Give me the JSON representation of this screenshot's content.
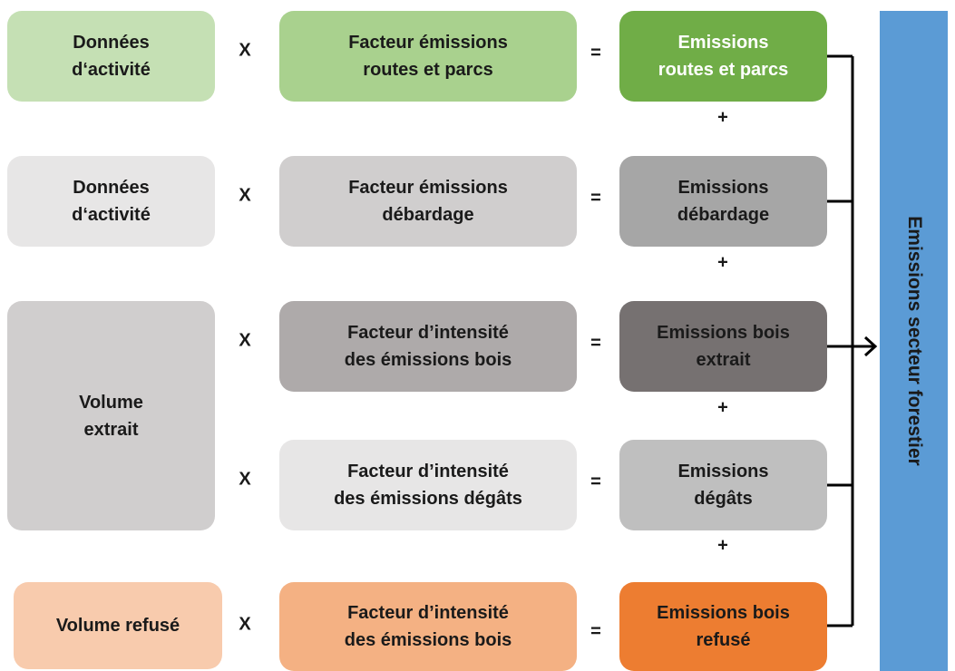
{
  "inputs": [
    [
      "Données",
      "d‘activité"
    ],
    [
      "Données",
      "d‘activité"
    ],
    [
      "Volume",
      "extrait"
    ],
    [
      "Volume refusé"
    ]
  ],
  "rows": [
    {
      "times": "X",
      "factor": [
        "Facteur émissions",
        "routes et parcs"
      ],
      "equals": "=",
      "result": [
        "Emissions",
        "routes et parcs"
      ]
    },
    {
      "times": "X",
      "factor": [
        "Facteur émissions",
        "débardage"
      ],
      "equals": "=",
      "result": [
        "Emissions",
        "débardage"
      ]
    },
    {
      "times": "X",
      "factor": [
        "Facteur  d’intensité",
        "des émissions bois"
      ],
      "equals": "=",
      "result": [
        "Emissions bois",
        "extrait"
      ]
    },
    {
      "times": "X",
      "factor": [
        "Facteur  d’intensité",
        "des émissions dégâts"
      ],
      "equals": "=",
      "result": [
        "Emissions",
        "dégâts"
      ]
    },
    {
      "times": "X",
      "factor": [
        "Facteur  d’intensité",
        "des émissions bois"
      ],
      "equals": "=",
      "result": [
        "Emissions bois",
        "refusé"
      ]
    }
  ],
  "plus": [
    "+",
    "+",
    "+",
    "+"
  ],
  "total": "Emissions secteur forestier"
}
